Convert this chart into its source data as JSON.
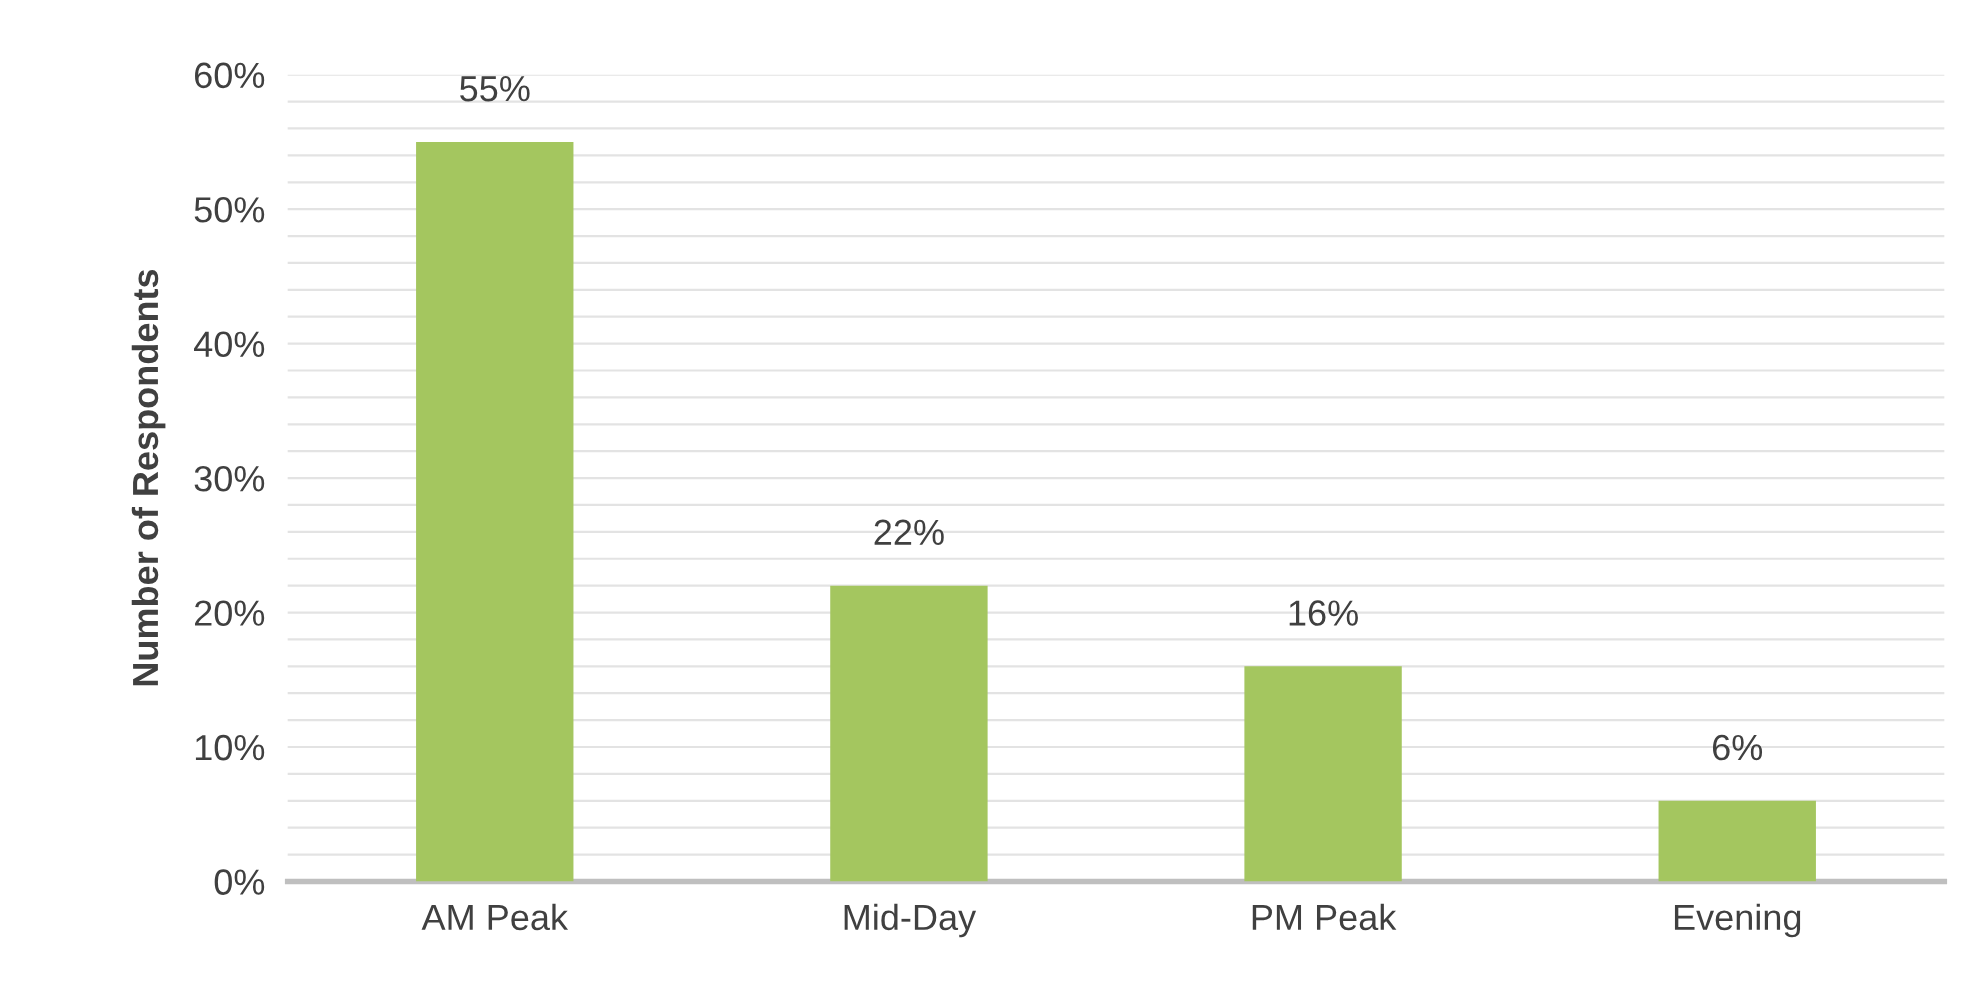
{
  "chart_data": {
    "type": "bar",
    "ylabel": "Number of Respondents",
    "categories": [
      "AM Peak",
      "Mid-Day",
      "PM Peak",
      "Evening"
    ],
    "values": [
      55,
      22,
      16,
      6
    ],
    "color": "#a4c65f",
    "data_labels": true,
    "value_labels": [
      "55%",
      "22%",
      "16%",
      "6%"
    ],
    "ylim": [
      0,
      60
    ],
    "yticks": [
      {
        "value": 0,
        "label": "0%"
      },
      {
        "value": 2,
        "label": null
      },
      {
        "value": 4,
        "label": null
      },
      {
        "value": 6,
        "label": null
      },
      {
        "value": 8,
        "label": null
      },
      {
        "value": 10,
        "label": "10%"
      },
      {
        "value": 12,
        "label": null
      },
      {
        "value": 14,
        "label": null
      },
      {
        "value": 16,
        "label": null
      },
      {
        "value": 18,
        "label": null
      },
      {
        "value": 20,
        "label": "20%"
      },
      {
        "value": 22,
        "label": null
      },
      {
        "value": 24,
        "label": null
      },
      {
        "value": 26,
        "label": null
      },
      {
        "value": 28,
        "label": null
      },
      {
        "value": 30,
        "label": "30%"
      },
      {
        "value": 32,
        "label": null
      },
      {
        "value": 34,
        "label": null
      },
      {
        "value": 36,
        "label": null
      },
      {
        "value": 38,
        "label": null
      },
      {
        "value": 40,
        "label": "40%"
      },
      {
        "value": 42,
        "label": null
      },
      {
        "value": 44,
        "label": null
      },
      {
        "value": 46,
        "label": null
      },
      {
        "value": 48,
        "label": null
      },
      {
        "value": 50,
        "label": "50%"
      },
      {
        "value": 52,
        "label": null
      },
      {
        "value": 54,
        "label": null
      },
      {
        "value": 56,
        "label": null
      },
      {
        "value": 58,
        "label": null
      },
      {
        "value": 60,
        "label": "60%"
      }
    ],
    "grid": "y",
    "legend": false
  }
}
